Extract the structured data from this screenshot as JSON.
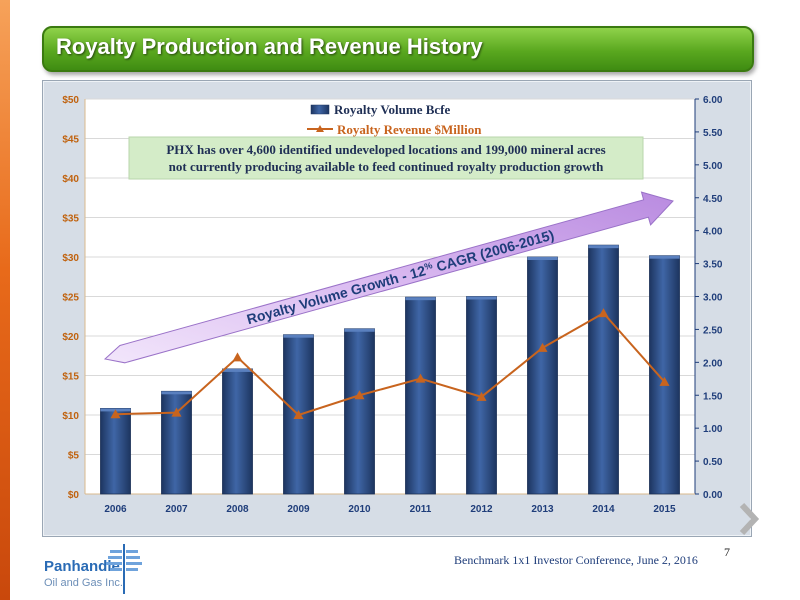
{
  "slide": {
    "title": "Royalty Production and Revenue History",
    "page_number": "7",
    "footer": "Benchmark 1x1 Investor Conference, June 2, 2016"
  },
  "logo": {
    "name": "Panhandle",
    "sub": "Oil and Gas Inc."
  },
  "annotation": {
    "line1": "PHX has over 4,600 identified undeveloped locations and 199,000 mineral acres",
    "line2": "not currently producing available to feed continued royalty production growth"
  },
  "growth_arrow": {
    "text_prefix": "Royalty Volume Growth - 12",
    "text_suffix": " CAGR (2006-2015)",
    "percent_sign": "%"
  },
  "colors": {
    "bar": "#2e4f86",
    "line": "#c8641e",
    "axis_text": "#c0620e",
    "right_axis_text": "#1f3d7a",
    "title_bg": "#5aa81f"
  },
  "chart_data": {
    "type": "bar",
    "categories": [
      "2006",
      "2007",
      "2008",
      "2009",
      "2010",
      "2011",
      "2012",
      "2013",
      "2014",
      "2015"
    ],
    "series": [
      {
        "name": "Royalty Volume Bcfe",
        "type": "bar",
        "axis": "right",
        "values": [
          1.3,
          1.56,
          1.9,
          2.42,
          2.51,
          2.99,
          3.0,
          3.6,
          3.78,
          3.62
        ]
      },
      {
        "name": "Royalty Revenue $Million",
        "type": "line",
        "axis": "left",
        "values": [
          10.1,
          10.3,
          17.3,
          10.0,
          12.5,
          14.6,
          12.3,
          18.5,
          22.9,
          14.2
        ]
      }
    ],
    "left_axis": {
      "min": 0,
      "max": 50,
      "ticks": [
        "$0",
        "$5",
        "$10",
        "$15",
        "$20",
        "$25",
        "$30",
        "$35",
        "$40",
        "$45",
        "$50"
      ]
    },
    "right_axis": {
      "min": 0,
      "max": 6,
      "ticks": [
        "0.00",
        "0.50",
        "1.00",
        "1.50",
        "2.00",
        "2.50",
        "3.00",
        "3.50",
        "4.00",
        "4.50",
        "5.00",
        "5.50",
        "6.00"
      ]
    },
    "legend_position": "top-center"
  }
}
